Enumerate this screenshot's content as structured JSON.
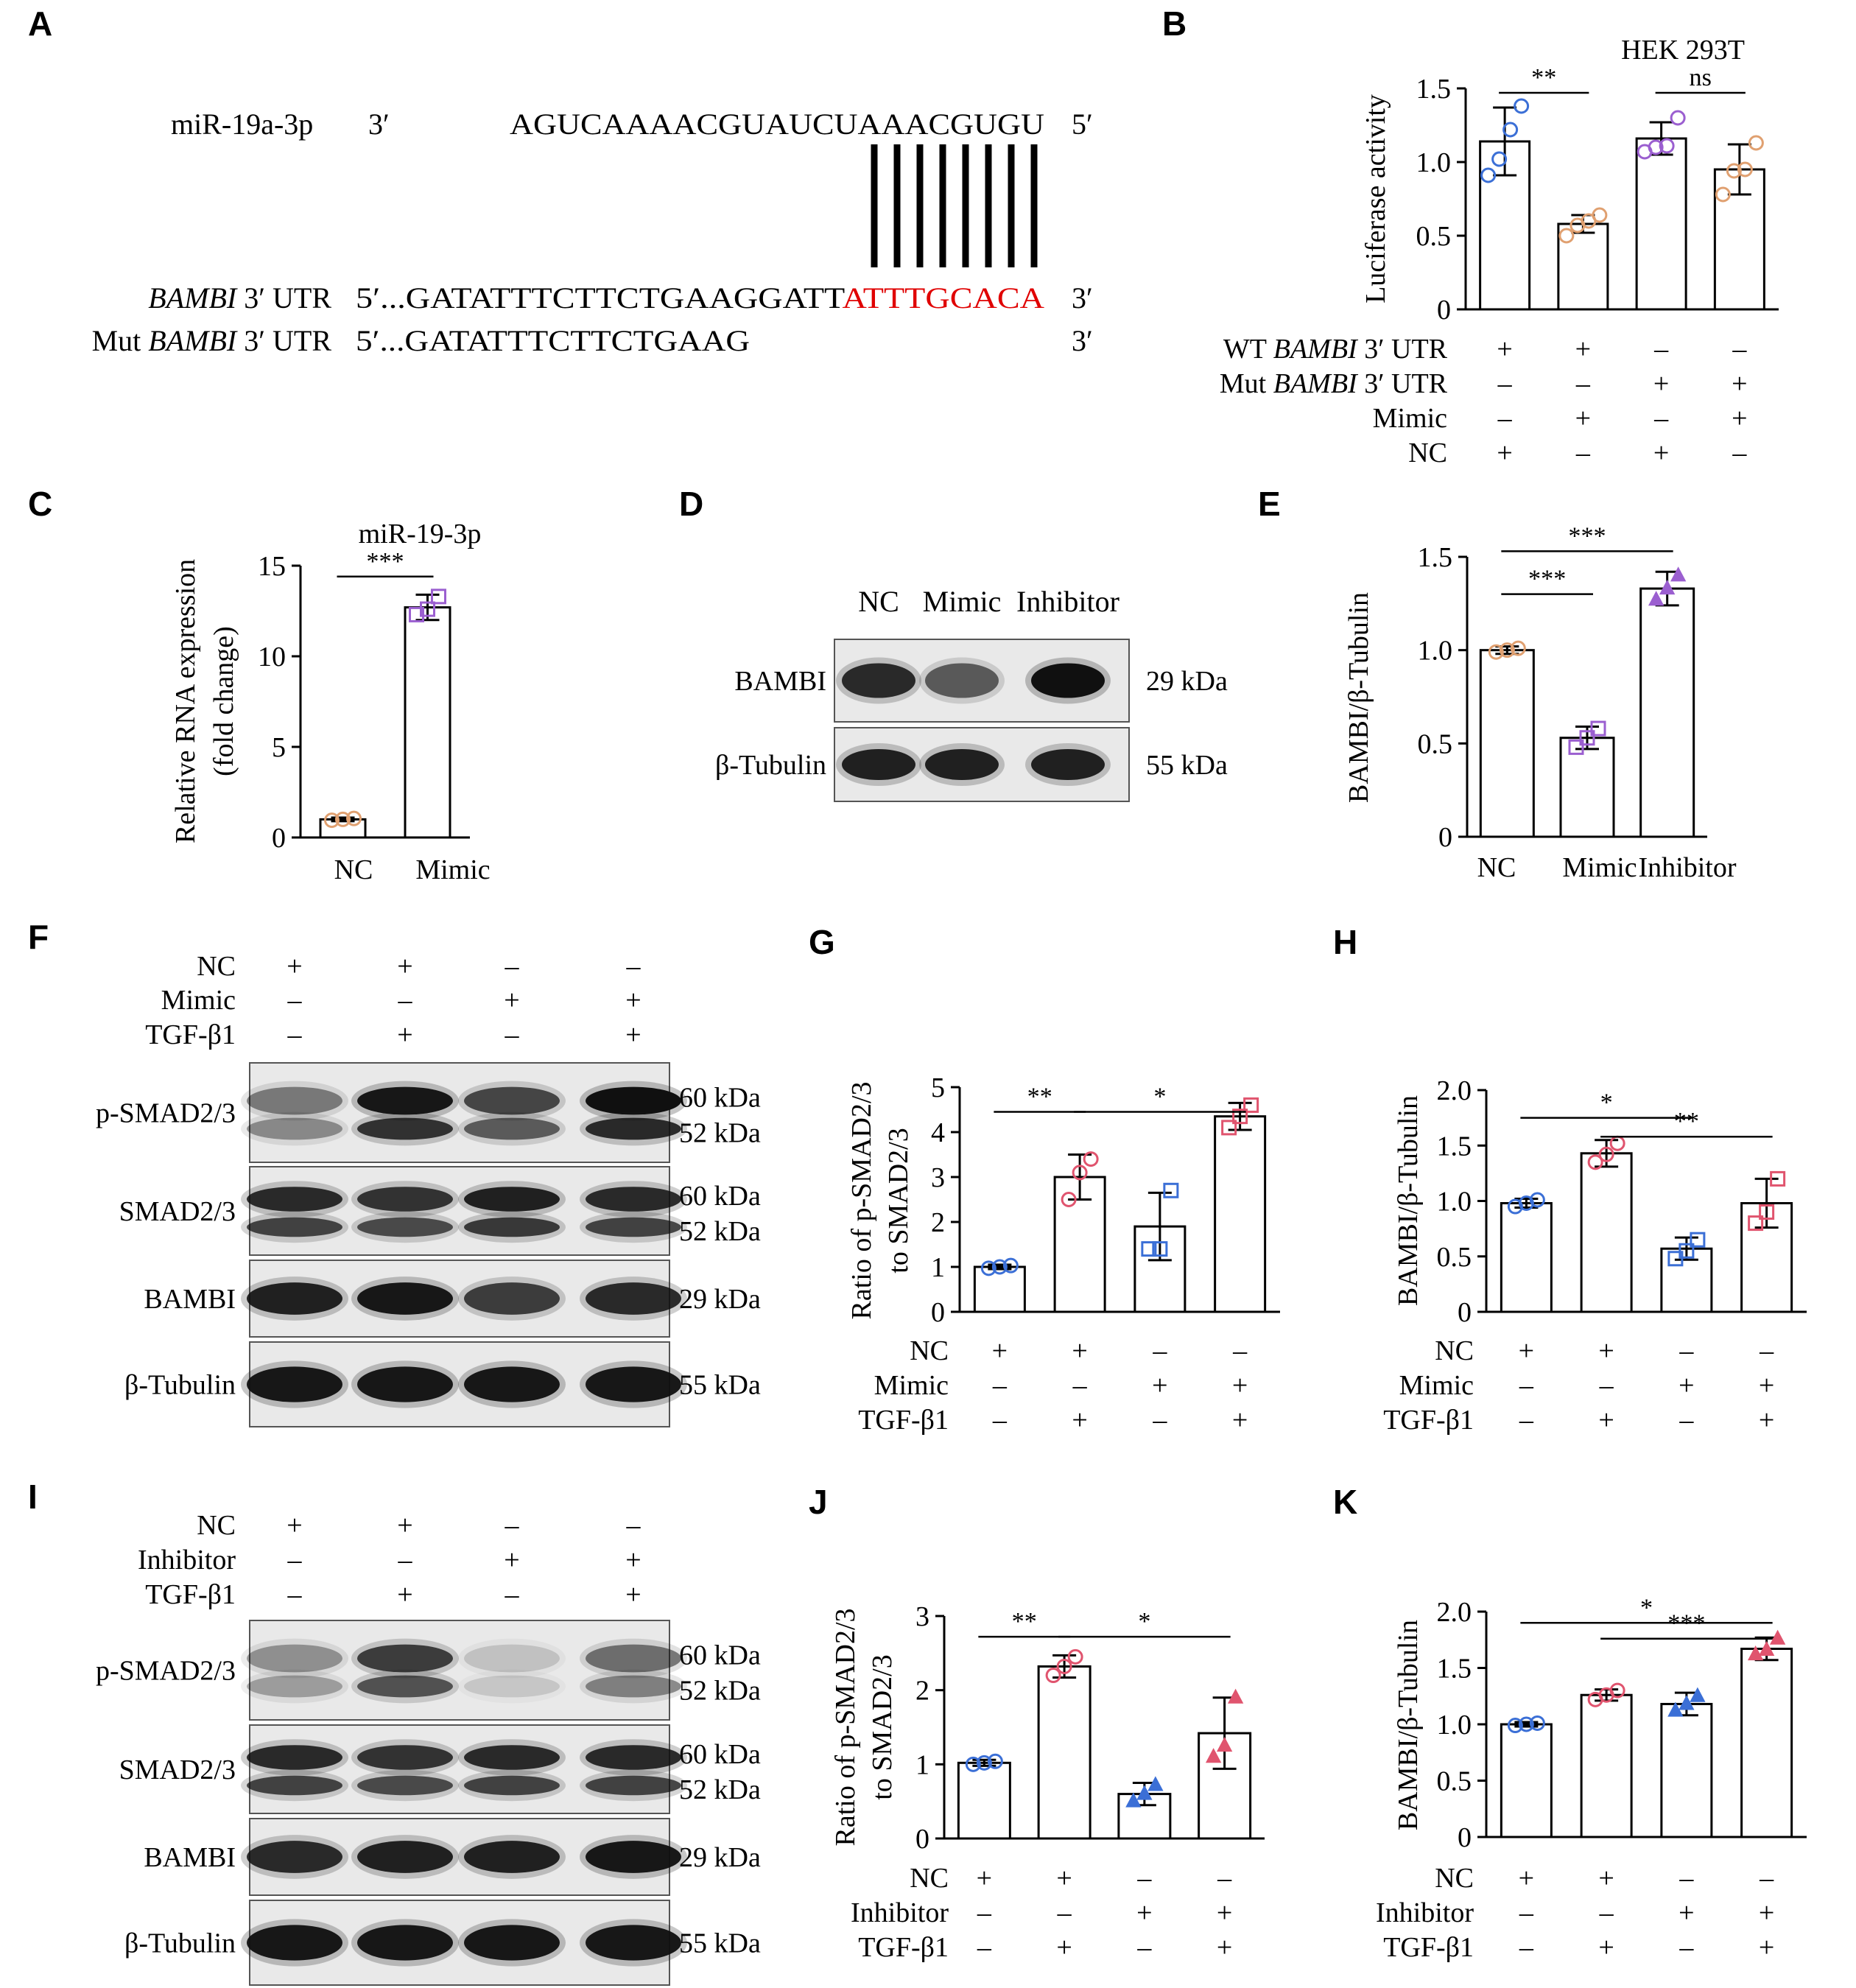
{
  "colors": {
    "blue": "#3b6fd6",
    "orange": "#e0a070",
    "purple": "#9b5fd0",
    "pink": "#e0546e",
    "red": "#e00000"
  },
  "panelA": {
    "label": "A",
    "mir_name": "miR-19a-3p",
    "mir_end3": "3′",
    "mir_seq": "AGUCAAAACGUAUCUAAACGUGU",
    "mir_end5": "5′",
    "wt_label_italic": "BAMBI",
    "wt_label_rest": " 3′ UTR",
    "wt_prefix": "5′...GATATTTCTTCTGAAGGATT",
    "wt_seed": "ATTTGCACA",
    "wt_end": "3′",
    "mut_label_pre": "Mut ",
    "mut_label_italic": "BAMBI",
    "mut_label_rest": " 3′ UTR",
    "mut_seq": "5′...GATATTTCTTCTGAAG",
    "mut_end": "3′",
    "pair_count": 8
  },
  "panel_labels": {
    "B": "B",
    "C": "C",
    "D": "D",
    "E": "E",
    "F": "F",
    "G": "G",
    "H": "H",
    "I": "I",
    "J": "J",
    "K": "K"
  },
  "chart_data": [
    {
      "id": "B",
      "type": "bar",
      "title": "HEK 293T",
      "ylabel": "Luciferase activity",
      "ylim": [
        0,
        1.5
      ],
      "yticks": [
        "0",
        "0.5",
        "1.0",
        "1.5"
      ],
      "values": [
        1.14,
        0.58,
        1.16,
        0.95
      ],
      "errors": [
        0.23,
        0.06,
        0.11,
        0.17
      ],
      "point_colors": [
        "blue",
        "orange",
        "purple",
        "orange"
      ],
      "points": [
        [
          0.91,
          1.02,
          1.22,
          1.38
        ],
        [
          0.5,
          0.57,
          0.6,
          0.64
        ],
        [
          1.07,
          1.1,
          1.11,
          1.3
        ],
        [
          0.78,
          0.94,
          0.95,
          1.13
        ]
      ],
      "sig": [
        {
          "text": "**",
          "from": 0,
          "to": 1,
          "y": 1.47
        },
        {
          "text": "ns",
          "from": 2,
          "to": 3,
          "y": 1.47
        }
      ],
      "conditions": [
        {
          "label_pre": "WT ",
          "label_italic": "BAMBI",
          "label_post": " 3′ UTR",
          "values": [
            "+",
            "+",
            "–",
            "–"
          ]
        },
        {
          "label_pre": "Mut ",
          "label_italic": "BAMBI",
          "label_post": " 3′ UTR",
          "values": [
            "–",
            "–",
            "+",
            "+"
          ]
        },
        {
          "label_pre": "Mimic",
          "label_italic": "",
          "label_post": "",
          "values": [
            "–",
            "+",
            "–",
            "+"
          ]
        },
        {
          "label_pre": "NC",
          "label_italic": "",
          "label_post": "",
          "values": [
            "+",
            "–",
            "+",
            "–"
          ]
        }
      ]
    },
    {
      "id": "C",
      "type": "bar",
      "title": "miR-19-3p",
      "ylabel": "Relative RNA expression",
      "ylabel2": "(fold change)",
      "ylim": [
        0,
        15
      ],
      "yticks": [
        "0",
        "5",
        "10",
        "15"
      ],
      "categories": [
        "NC",
        "Mimic"
      ],
      "values": [
        1.0,
        12.7
      ],
      "errors": [
        0.1,
        0.7
      ],
      "point_colors": [
        "orange",
        "purple"
      ],
      "points": [
        [
          0.95,
          1.0,
          1.05
        ],
        [
          12.3,
          12.6,
          13.3
        ]
      ],
      "sig": [
        {
          "text": "***",
          "from": 0,
          "to": 1,
          "y": 14.4
        }
      ]
    },
    {
      "id": "E",
      "type": "bar",
      "ylabel": "BAMBI/β-Tubulin",
      "ylim": [
        0,
        1.5
      ],
      "yticks": [
        "0",
        "0.5",
        "1.0",
        "1.5"
      ],
      "categories": [
        "NC",
        "Mimic",
        "Inhibitor"
      ],
      "values": [
        1.0,
        0.53,
        1.33
      ],
      "errors": [
        0.02,
        0.06,
        0.09
      ],
      "point_colors": [
        "orange",
        "purple",
        "purple"
      ],
      "points": [
        [
          0.99,
          1.0,
          1.01
        ],
        [
          0.48,
          0.53,
          0.58
        ],
        [
          1.27,
          1.33,
          1.4
        ]
      ],
      "sig": [
        {
          "text": "***",
          "from": 0,
          "to": 1,
          "y": 1.3
        },
        {
          "text": "***",
          "from": 0,
          "to": 2,
          "y": 1.53
        }
      ]
    },
    {
      "id": "G",
      "type": "bar",
      "ylabel": "Ratio of p-SMAD2/3",
      "ylabel2": "to SMAD2/3",
      "ylim": [
        0,
        5
      ],
      "yticks": [
        "0",
        "1",
        "2",
        "3",
        "4",
        "5"
      ],
      "values": [
        1.0,
        3.0,
        1.9,
        4.35
      ],
      "errors": [
        0.05,
        0.5,
        0.75,
        0.3
      ],
      "point_colors": [
        "blue",
        "pink",
        "blue",
        "pink"
      ],
      "points": [
        [
          0.97,
          1.0,
          1.03
        ],
        [
          2.5,
          3.1,
          3.4
        ],
        [
          1.4,
          1.4,
          2.7
        ],
        [
          4.1,
          4.35,
          4.6
        ]
      ],
      "sig": [
        {
          "text": "**",
          "from": 0,
          "to": 1,
          "y": 4.45
        },
        {
          "text": "*",
          "from": 1,
          "to": 3,
          "y": 4.45
        }
      ],
      "conditions": [
        {
          "label_pre": "NC",
          "label_italic": "",
          "label_post": "",
          "values": [
            "+",
            "+",
            "–",
            "–"
          ]
        },
        {
          "label_pre": "Mimic",
          "label_italic": "",
          "label_post": "",
          "values": [
            "–",
            "–",
            "+",
            "+"
          ]
        },
        {
          "label_pre": "TGF-β1",
          "label_italic": "",
          "label_post": "",
          "values": [
            "–",
            "+",
            "–",
            "+"
          ]
        }
      ]
    },
    {
      "id": "H",
      "type": "bar",
      "ylabel": "BAMBI/β-Tubulin",
      "ylim": [
        0,
        2.0
      ],
      "yticks": [
        "0",
        "0.5",
        "1.0",
        "1.5",
        "2.0"
      ],
      "values": [
        0.98,
        1.43,
        0.57,
        0.98
      ],
      "errors": [
        0.04,
        0.12,
        0.1,
        0.22
      ],
      "point_colors": [
        "blue",
        "pink",
        "blue",
        "pink"
      ],
      "points": [
        [
          0.95,
          0.98,
          1.01
        ],
        [
          1.35,
          1.42,
          1.52
        ],
        [
          0.48,
          0.55,
          0.65
        ],
        [
          0.8,
          0.9,
          1.2
        ]
      ],
      "sig": [
        {
          "text": "*",
          "from": 0,
          "to": 2,
          "y": 1.75
        },
        {
          "text": "**",
          "from": 1,
          "to": 3,
          "y": 1.58
        }
      ],
      "conditions": [
        {
          "label_pre": "NC",
          "label_italic": "",
          "label_post": "",
          "values": [
            "+",
            "+",
            "–",
            "–"
          ]
        },
        {
          "label_pre": "Mimic",
          "label_italic": "",
          "label_post": "",
          "values": [
            "–",
            "–",
            "+",
            "+"
          ]
        },
        {
          "label_pre": "TGF-β1",
          "label_italic": "",
          "label_post": "",
          "values": [
            "–",
            "+",
            "–",
            "+"
          ]
        }
      ]
    },
    {
      "id": "J",
      "type": "bar",
      "ylabel": "Ratio of p-SMAD2/3",
      "ylabel2": "to SMAD2/3",
      "ylim": [
        0,
        3
      ],
      "yticks": [
        "0",
        "1",
        "2",
        "3"
      ],
      "values": [
        1.02,
        2.32,
        0.6,
        1.42
      ],
      "errors": [
        0.04,
        0.15,
        0.15,
        0.48
      ],
      "point_colors": [
        "blue",
        "pink",
        "blue",
        "pink"
      ],
      "points": [
        [
          1.0,
          1.02,
          1.04
        ],
        [
          2.2,
          2.32,
          2.45
        ],
        [
          0.5,
          0.6,
          0.72
        ],
        [
          1.1,
          1.25,
          1.9
        ]
      ],
      "sig": [
        {
          "text": "**",
          "from": 0,
          "to": 1,
          "y": 2.72
        },
        {
          "text": "*",
          "from": 1,
          "to": 3,
          "y": 2.72
        }
      ],
      "conditions": [
        {
          "label_pre": "NC",
          "label_italic": "",
          "label_post": "",
          "values": [
            "+",
            "+",
            "–",
            "–"
          ]
        },
        {
          "label_pre": "Inhibitor",
          "label_italic": "",
          "label_post": "",
          "values": [
            "–",
            "–",
            "+",
            "+"
          ]
        },
        {
          "label_pre": "TGF-β1",
          "label_italic": "",
          "label_post": "",
          "values": [
            "–",
            "+",
            "–",
            "+"
          ]
        }
      ]
    },
    {
      "id": "K",
      "type": "bar",
      "ylabel": "BAMBI/β-Tubulin",
      "ylim": [
        0,
        2.0
      ],
      "yticks": [
        "0",
        "0.5",
        "1.0",
        "1.5",
        "2.0"
      ],
      "values": [
        1.0,
        1.26,
        1.18,
        1.67
      ],
      "errors": [
        0.02,
        0.05,
        0.1,
        0.1
      ],
      "point_colors": [
        "blue",
        "pink",
        "blue",
        "pink"
      ],
      "points": [
        [
          0.99,
          1.0,
          1.01
        ],
        [
          1.22,
          1.26,
          1.3
        ],
        [
          1.12,
          1.18,
          1.25
        ],
        [
          1.62,
          1.66,
          1.76
        ]
      ],
      "sig": [
        {
          "text": "*",
          "from": 0,
          "to": 3,
          "y": 1.9
        },
        {
          "text": "***",
          "from": 1,
          "to": 3,
          "y": 1.76
        }
      ],
      "conditions": [
        {
          "label_pre": "NC",
          "label_italic": "",
          "label_post": "",
          "values": [
            "+",
            "+",
            "–",
            "–"
          ]
        },
        {
          "label_pre": "Inhibitor",
          "label_italic": "",
          "label_post": "",
          "values": [
            "–",
            "–",
            "+",
            "+"
          ]
        },
        {
          "label_pre": "TGF-β1",
          "label_italic": "",
          "label_post": "",
          "values": [
            "–",
            "+",
            "–",
            "+"
          ]
        }
      ]
    }
  ],
  "blots": {
    "D": {
      "lanes": [
        "NC",
        "Mimic",
        "Inhibitor"
      ],
      "rows": [
        {
          "label": "BAMBI",
          "sizes": [
            "29 kDa"
          ],
          "intensity": [
            0.85,
            0.6,
            1.0
          ],
          "double": false
        },
        {
          "label": "β-Tubulin",
          "sizes": [
            "55 kDa"
          ],
          "intensity": [
            0.9,
            0.9,
            0.9
          ],
          "double": false
        }
      ]
    },
    "F": {
      "conditions": [
        {
          "label": "NC",
          "values": [
            "+",
            "+",
            "–",
            "–"
          ]
        },
        {
          "label": "Mimic",
          "values": [
            "–",
            "–",
            "+",
            "+"
          ]
        },
        {
          "label": "TGF-β1",
          "values": [
            "–",
            "+",
            "–",
            "+"
          ]
        }
      ],
      "rows": [
        {
          "label": "p-SMAD2/3",
          "sizes": [
            "60 kDa",
            "52 kDa"
          ],
          "intensity": [
            0.45,
            0.95,
            0.7,
            1.0
          ],
          "double": true
        },
        {
          "label": "SMAD2/3",
          "sizes": [
            "60 kDa",
            "52 kDa"
          ],
          "intensity": [
            0.85,
            0.8,
            0.9,
            0.85
          ],
          "double": true
        },
        {
          "label": "BAMBI",
          "sizes": [
            "29 kDa"
          ],
          "intensity": [
            0.9,
            0.95,
            0.75,
            0.85
          ],
          "double": false
        },
        {
          "label": "β-Tubulin",
          "sizes": [
            "55 kDa"
          ],
          "intensity": [
            0.95,
            0.95,
            0.95,
            0.95
          ],
          "double": false
        }
      ]
    },
    "I": {
      "conditions": [
        {
          "label": "NC",
          "values": [
            "+",
            "+",
            "–",
            "–"
          ]
        },
        {
          "label": "Inhibitor",
          "values": [
            "–",
            "–",
            "+",
            "+"
          ]
        },
        {
          "label": "TGF-β1",
          "values": [
            "–",
            "+",
            "–",
            "+"
          ]
        }
      ],
      "rows": [
        {
          "label": "p-SMAD2/3",
          "sizes": [
            "60 kDa",
            "52 kDa"
          ],
          "intensity": [
            0.35,
            0.75,
            0.15,
            0.5
          ],
          "double": true
        },
        {
          "label": "SMAD2/3",
          "sizes": [
            "60 kDa",
            "52 kDa"
          ],
          "intensity": [
            0.85,
            0.8,
            0.85,
            0.85
          ],
          "double": true
        },
        {
          "label": "BAMBI",
          "sizes": [
            "29 kDa"
          ],
          "intensity": [
            0.85,
            0.9,
            0.9,
            0.95
          ],
          "double": false
        },
        {
          "label": "β-Tubulin",
          "sizes": [
            "55 kDa"
          ],
          "intensity": [
            0.95,
            0.95,
            0.95,
            0.95
          ],
          "double": false
        }
      ]
    }
  }
}
